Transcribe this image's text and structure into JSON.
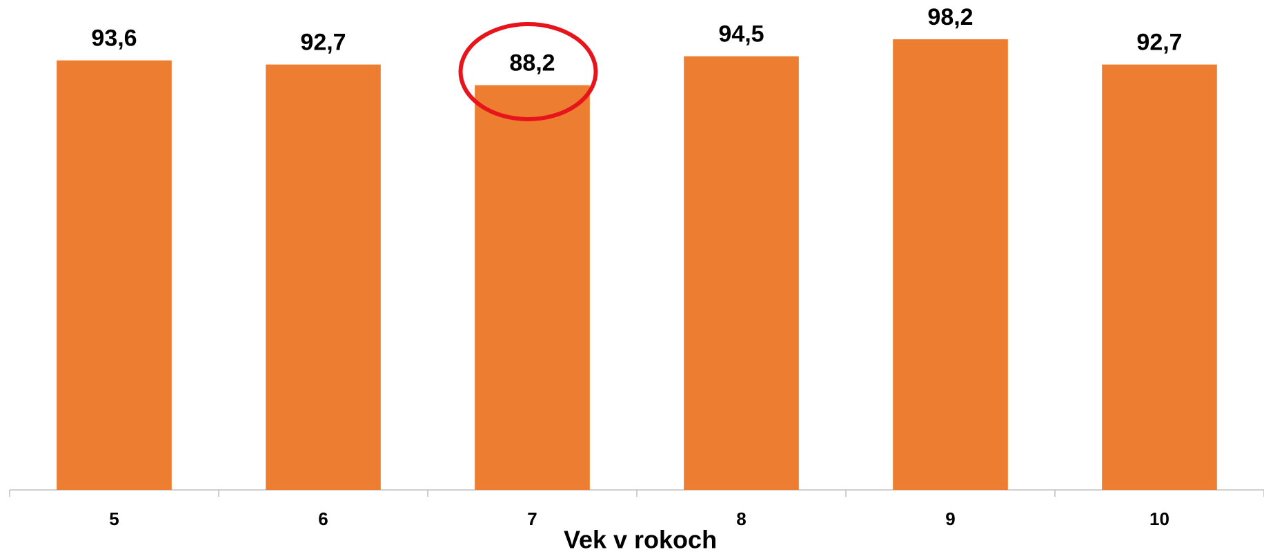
{
  "chart_data": {
    "type": "bar",
    "x_label": "Vek v rokoch",
    "categories": [
      "5",
      "6",
      "7",
      "8",
      "9",
      "10"
    ],
    "values": [
      93.6,
      92.7,
      88.2,
      94.5,
      98.2,
      92.7
    ],
    "value_labels": [
      "93,6",
      "92,7",
      "88,2",
      "94,5",
      "98,2",
      "92,7"
    ],
    "color": "#ed7d31",
    "ylim": [
      0,
      100
    ]
  }
}
